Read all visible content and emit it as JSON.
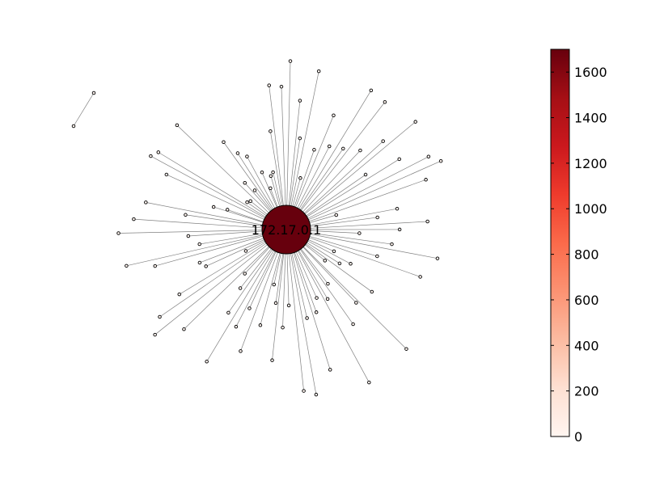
{
  "graph": {
    "hub": {
      "label": "172.17.0.1",
      "value": 1700
    },
    "leaf_count": 94,
    "detached_pair": {
      "count": 2,
      "value": 0
    }
  },
  "colorbar": {
    "colormap": "Reds",
    "colors": [
      "#fff5f0",
      "#fee0d2",
      "#fcbba1",
      "#fc9272",
      "#fb6a4a",
      "#ef3b2c",
      "#cb181d",
      "#a50f15",
      "#67000d"
    ],
    "range": [
      0,
      1700
    ],
    "ticks": [
      {
        "value": 0,
        "label": "0"
      },
      {
        "value": 200,
        "label": "200"
      },
      {
        "value": 400,
        "label": "400"
      },
      {
        "value": 600,
        "label": "600"
      },
      {
        "value": 800,
        "label": "800"
      },
      {
        "value": 1000,
        "label": "1000"
      },
      {
        "value": 1200,
        "label": "1200"
      },
      {
        "value": 1400,
        "label": "1400"
      },
      {
        "value": 1600,
        "label": "1600"
      }
    ]
  }
}
